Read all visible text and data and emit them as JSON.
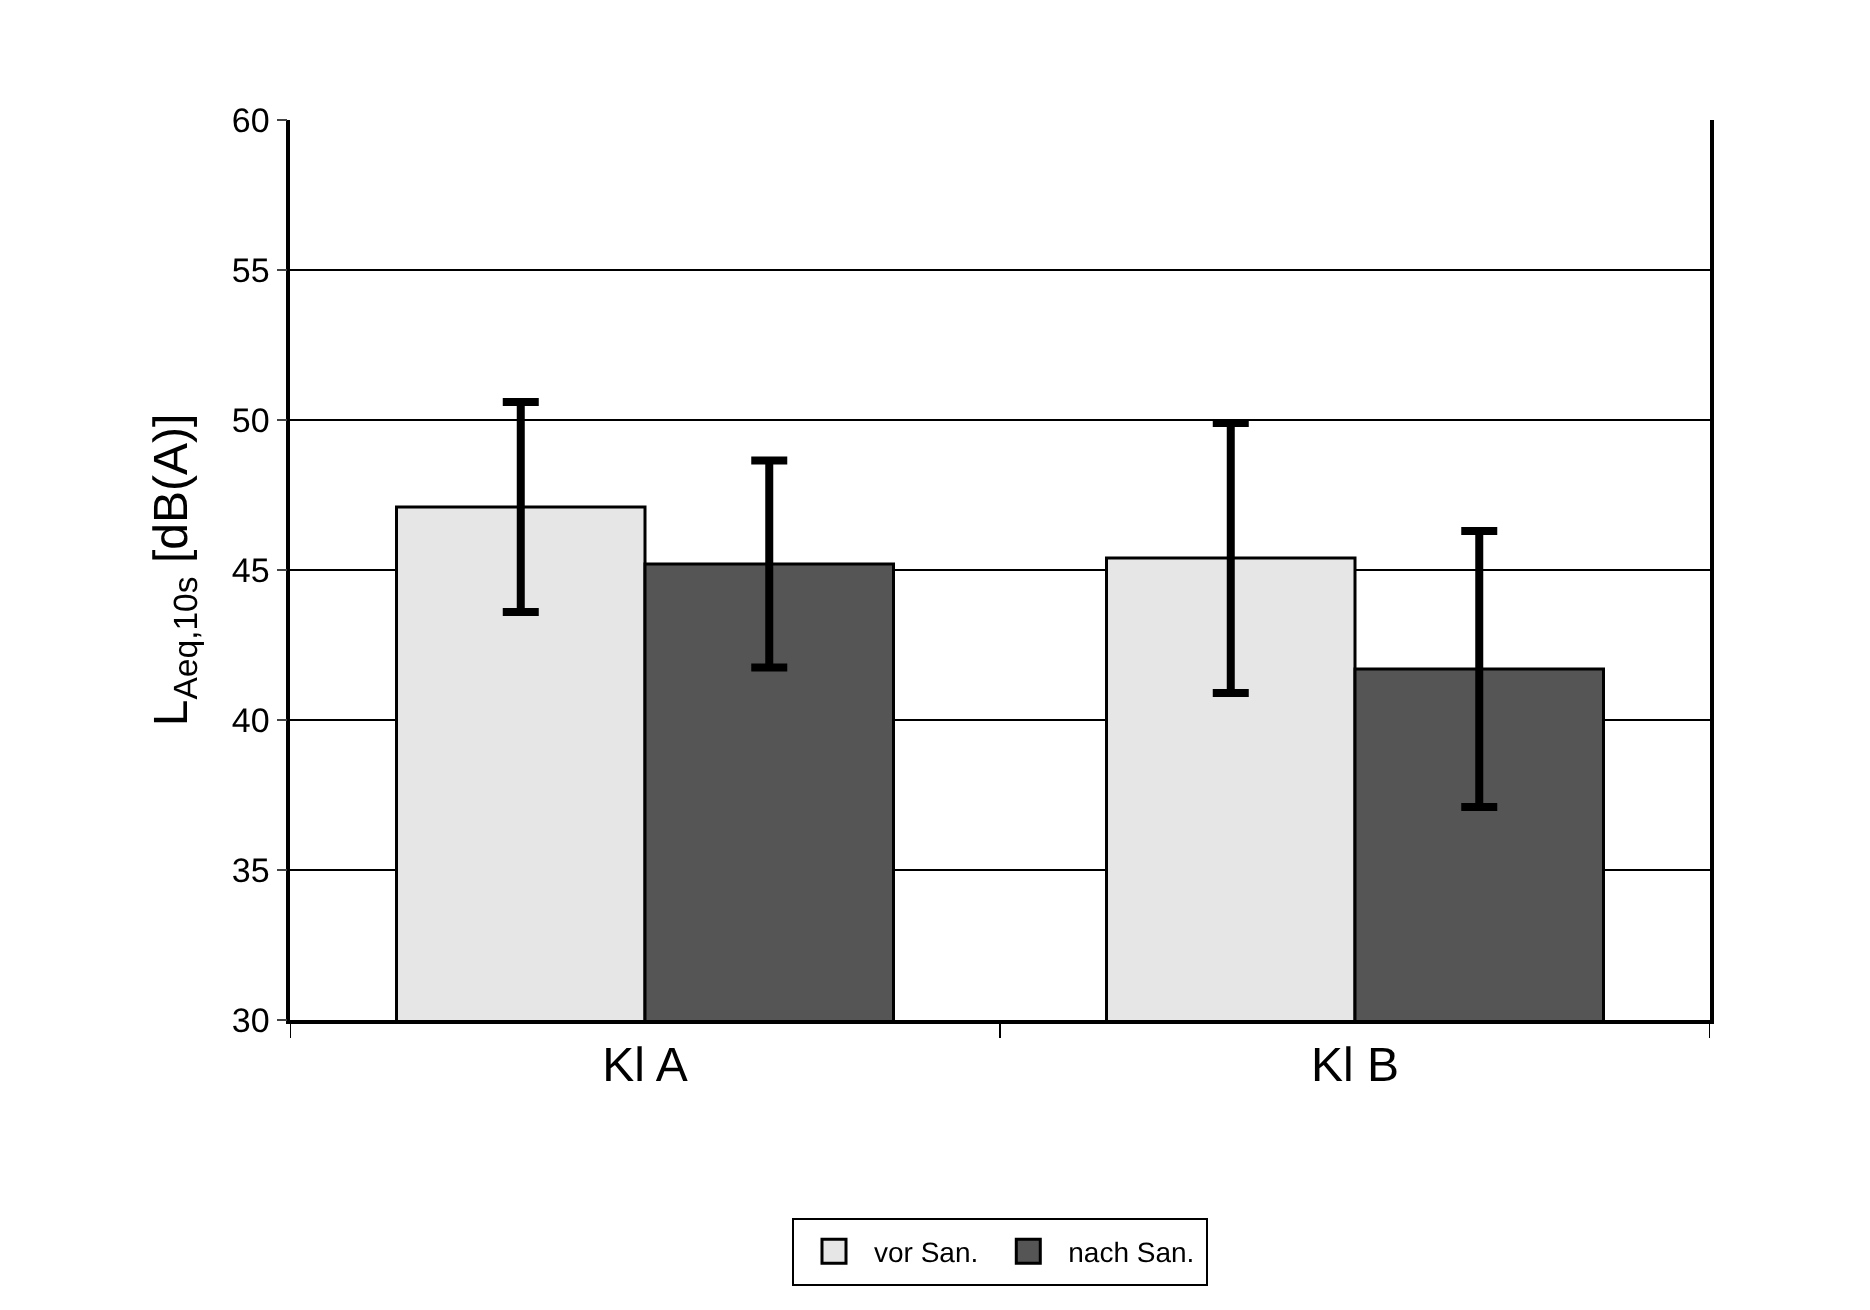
{
  "chart_data": {
    "type": "bar",
    "ylabel": "L$_{Aeq,10s}$ [dB(A)]",
    "categories": [
      "Kl A",
      "Kl B"
    ],
    "series": [
      {
        "name": "vor San.",
        "color": "#e6e6e6",
        "values": [
          47.1,
          45.4
        ],
        "errors": [
          3.5,
          4.5
        ]
      },
      {
        "name": "nach San.",
        "color": "#555555",
        "values": [
          45.2,
          41.7
        ],
        "errors": [
          3.45,
          4.6
        ]
      }
    ],
    "ylim": [
      30,
      60
    ],
    "yticks": [
      30,
      35,
      40,
      45,
      50,
      55,
      60
    ],
    "grid": "y",
    "legend": "bottom"
  }
}
